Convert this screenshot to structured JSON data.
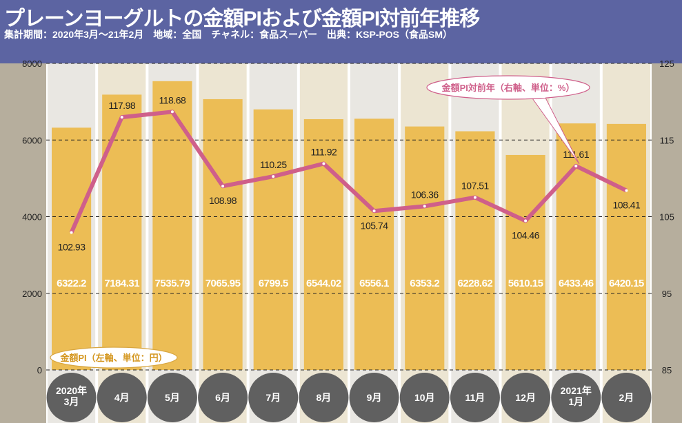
{
  "header": {
    "title": "プレーンヨーグルトの金額PIおよび金額PI対前年推移",
    "subtitle": "集計期間：2020年3月～21年2月　地域：全国　チャネル：食品スーパー　出典：KSP-POS（食品SM）"
  },
  "chart_data": {
    "type": "bar+line",
    "categories": [
      "2020年\n3月",
      "4月",
      "5月",
      "6月",
      "7月",
      "8月",
      "9月",
      "10月",
      "11月",
      "12月",
      "2021年\n1月",
      "2月"
    ],
    "series": [
      {
        "name": "金額PI（左軸、単位：円）",
        "type": "bar",
        "axis": "left",
        "color": "#ecbd55",
        "values": [
          6322.2,
          7184.31,
          7535.79,
          7065.95,
          6799.5,
          6544.02,
          6556.1,
          6353.2,
          6228.62,
          5610.15,
          6433.46,
          6420.15
        ],
        "labels": [
          "6322.2",
          "7184.31",
          "7535.79",
          "7065.95",
          "6799.5",
          "6544.02",
          "6556.1",
          "6353.2",
          "6228.62",
          "5610.15",
          "6433.46",
          "6420.15"
        ]
      },
      {
        "name": "金額PI対前年（右軸、単位：%）",
        "type": "line",
        "axis": "right",
        "color": "#cf5f8a",
        "values": [
          102.93,
          117.98,
          118.68,
          108.98,
          110.25,
          111.92,
          105.74,
          106.36,
          107.51,
          104.46,
          111.61,
          108.41
        ],
        "labels": [
          "102.93",
          "117.98",
          "118.68",
          "108.98",
          "110.25",
          "111.92",
          "105.74",
          "106.36",
          "107.51",
          "104.46",
          "111.61",
          "108.41"
        ]
      }
    ],
    "left_axis": {
      "ylim": [
        0,
        8000
      ],
      "ticks": [
        "0",
        "2000",
        "4000",
        "6000",
        "8000"
      ]
    },
    "right_axis": {
      "ylim": [
        85,
        125
      ],
      "ticks": [
        "85",
        "95",
        "105",
        "115",
        "125"
      ]
    },
    "grid": "dashed horizontal",
    "colors": {
      "header": "#5c64a2",
      "side_panel": "#b6ae9d",
      "column_a": "#e9e7e2",
      "column_b": "#ece5d2",
      "month_circle": "#606060"
    }
  }
}
